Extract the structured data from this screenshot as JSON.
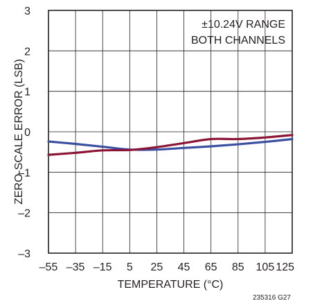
{
  "chart_data": {
    "type": "line",
    "title": "",
    "xlabel": "TEMPERATURE  (°C)",
    "ylabel": "ZERO-SCALE ERROR (LSB)",
    "xlim": [
      -55,
      125
    ],
    "ylim": [
      -3,
      3
    ],
    "x_ticks": [
      -55,
      -35,
      -15,
      5,
      25,
      45,
      65,
      85,
      105,
      125
    ],
    "y_ticks": [
      -3,
      -2,
      -1,
      0,
      1,
      2,
      3
    ],
    "x_tick_labels": [
      "–55",
      "–35",
      "–15",
      "5",
      "25",
      "45",
      "65",
      "85",
      "105",
      "125"
    ],
    "y_tick_labels": [
      "–3",
      "–2",
      "–1",
      "0",
      "1",
      "2",
      "3"
    ],
    "grid": true,
    "legend": "none",
    "annotation": [
      "±10.24V RANGE",
      "BOTH CHANNELS"
    ],
    "figure_id": "235316 G27",
    "series": [
      {
        "color": "#3b4fa0",
        "x": [
          -55,
          -35,
          -15,
          5,
          25,
          45,
          65,
          85,
          105,
          125
        ],
        "y": [
          -0.24,
          -0.3,
          -0.37,
          -0.44,
          -0.44,
          -0.4,
          -0.36,
          -0.31,
          -0.25,
          -0.18
        ]
      },
      {
        "color": "#8c1535",
        "x": [
          -55,
          -35,
          -15,
          5,
          25,
          45,
          65,
          85,
          105,
          125
        ],
        "y": [
          -0.57,
          -0.52,
          -0.46,
          -0.45,
          -0.38,
          -0.28,
          -0.18,
          -0.18,
          -0.14,
          -0.08
        ]
      }
    ]
  }
}
